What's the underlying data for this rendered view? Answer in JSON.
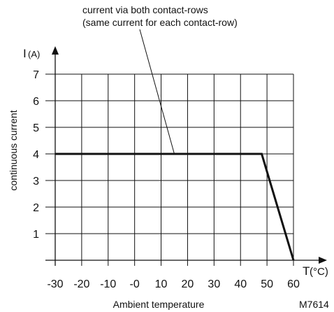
{
  "chart_data": {
    "type": "line",
    "xlabel": "Ambient temperature",
    "x_axis_name": "T",
    "x_axis_unit": "(°C)",
    "ylabel": "continuous current",
    "y_axis_name": "I",
    "y_axis_unit": "(A)",
    "xlim": [
      -30,
      60
    ],
    "ylim": [
      0,
      7
    ],
    "x_ticks": [
      "-30",
      "-20",
      "-10",
      "-0",
      "10",
      "20",
      "30",
      "40",
      "50",
      "60"
    ],
    "x_tick_values": [
      -30,
      -20,
      -10,
      0,
      10,
      20,
      30,
      40,
      50,
      60
    ],
    "y_ticks": [
      "1",
      "2",
      "3",
      "4",
      "5",
      "6",
      "7"
    ],
    "y_tick_values": [
      1,
      2,
      3,
      4,
      5,
      6,
      7
    ],
    "grid": true,
    "series": [
      {
        "x": [
          -30,
          48,
          60
        ],
        "y": [
          4,
          4,
          0
        ]
      }
    ],
    "annotation": {
      "line1": "current via both contact-rows",
      "line2": "(same current for each contact-row)",
      "point_x": 15,
      "point_y": 4
    },
    "figure_code": "M7614",
    "colors": {
      "line": "#111111",
      "grid": "#111111"
    }
  }
}
